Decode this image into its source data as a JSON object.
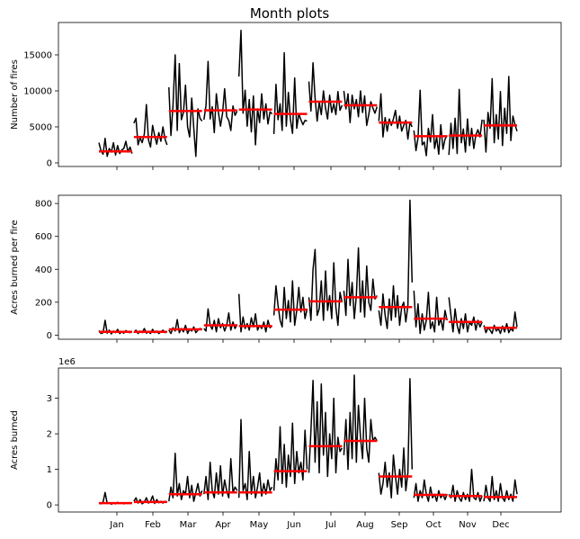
{
  "chart_data": {
    "type": "line",
    "title": "Month plots",
    "months": [
      "Jan",
      "Feb",
      "Mar",
      "Apr",
      "May",
      "Jun",
      "Jul",
      "Aug",
      "Sep",
      "Oct",
      "Nov",
      "Dec"
    ],
    "mean_line_color": "#ff0000",
    "series_line_color": "#000000",
    "panels": [
      {
        "ylabel": "Number of fires",
        "ylim": [
          -500,
          19500
        ],
        "yticks": [
          0,
          5000,
          10000,
          15000
        ],
        "ytick_labels": [
          "0",
          "5000",
          "10000",
          "15000"
        ],
        "offset_label": "",
        "month_means": [
          1600,
          3600,
          7200,
          7300,
          7400,
          6800,
          8500,
          8000,
          5600,
          3700,
          3800,
          5200
        ],
        "month_series": [
          [
            2800,
            1700,
            1200,
            3400,
            900,
            2000,
            1500,
            2800,
            1100,
            2400,
            1300,
            1800,
            2000,
            3000,
            1500,
            2200,
            1300
          ],
          [
            5500,
            6200,
            2500,
            3500,
            2800,
            4000,
            8100,
            3200,
            2200,
            5200,
            3800,
            2600,
            4200,
            3000,
            5000,
            3300,
            2500
          ],
          [
            10500,
            3800,
            8000,
            15000,
            4500,
            13800,
            6000,
            7000,
            10800,
            5000,
            3600,
            9000,
            4800,
            900,
            7500,
            6200,
            5800
          ],
          [
            6000,
            8000,
            14100,
            6100,
            7800,
            4200,
            9600,
            7000,
            5100,
            6900,
            10300,
            6400,
            5900,
            4500,
            7900,
            6600,
            7200
          ],
          [
            12000,
            18400,
            6900,
            10100,
            5100,
            8800,
            4300,
            9300,
            2500,
            7500,
            5600,
            9600,
            6100,
            8200,
            5400,
            7100,
            6800
          ],
          [
            4000,
            10900,
            6000,
            8200,
            4500,
            15300,
            5100,
            9800,
            6000,
            4100,
            11800,
            4800,
            6800,
            6000,
            5300,
            5900,
            5800
          ],
          [
            11300,
            7200,
            13900,
            9000,
            5800,
            8500,
            6700,
            10000,
            7600,
            6100,
            9400,
            7000,
            8200,
            6700,
            9900,
            7300,
            8000
          ],
          [
            10000,
            7500,
            9600,
            5600,
            9400,
            7500,
            8800,
            6400,
            10000,
            7000,
            9300,
            5200,
            6700,
            8500,
            7600,
            6900,
            7800
          ],
          [
            5800,
            9600,
            3600,
            6300,
            4400,
            6100,
            5200,
            6100,
            7300,
            4800,
            6500,
            4400,
            5200,
            5900,
            3300,
            5600,
            5000
          ],
          [
            4500,
            1700,
            3500,
            10100,
            2500,
            2900,
            1000,
            4800,
            2900,
            6700,
            2000,
            3600,
            1200,
            5300,
            1900,
            3300,
            3800
          ],
          [
            1100,
            5500,
            2000,
            6200,
            1300,
            10200,
            2800,
            4700,
            1500,
            6100,
            2400,
            4800,
            2000,
            3900,
            4600,
            3600,
            6000
          ],
          [
            6000,
            1500,
            7000,
            4800,
            11700,
            2800,
            6700,
            3300,
            9900,
            2400,
            7600,
            4100,
            12000,
            3100,
            6500,
            5300,
            4400
          ]
        ]
      },
      {
        "ylabel": "Acres burned per fire",
        "ylim": [
          -25,
          850
        ],
        "yticks": [
          0,
          200,
          400,
          600,
          800
        ],
        "ytick_labels": [
          "0",
          "200",
          "400",
          "600",
          "800"
        ],
        "offset_label": "",
        "month_means": [
          20,
          20,
          35,
          60,
          55,
          155,
          205,
          230,
          170,
          100,
          80,
          45
        ],
        "month_series": [
          [
            28,
            10,
            15,
            90,
            12,
            30,
            8,
            25,
            15,
            35,
            10,
            20,
            12,
            28,
            18,
            15,
            22
          ],
          [
            15,
            30,
            10,
            25,
            15,
            40,
            12,
            20,
            10,
            35,
            15,
            25,
            10,
            20,
            30,
            15,
            22
          ],
          [
            30,
            10,
            45,
            25,
            95,
            15,
            40,
            20,
            60,
            10,
            35,
            25,
            50,
            15,
            30,
            40,
            35
          ],
          [
            40,
            25,
            160,
            60,
            35,
            90,
            20,
            100,
            45,
            70,
            25,
            60,
            135,
            30,
            80,
            40,
            65
          ],
          [
            250,
            20,
            110,
            40,
            70,
            30,
            105,
            50,
            130,
            30,
            60,
            40,
            80,
            20,
            90,
            45,
            55
          ],
          [
            120,
            300,
            180,
            90,
            50,
            290,
            100,
            210,
            80,
            330,
            60,
            150,
            290,
            140,
            230,
            100,
            160
          ],
          [
            230,
            90,
            400,
            520,
            120,
            160,
            330,
            90,
            390,
            150,
            240,
            100,
            440,
            170,
            60,
            260,
            200
          ],
          [
            270,
            120,
            460,
            180,
            320,
            100,
            240,
            530,
            140,
            330,
            110,
            420,
            200,
            150,
            340,
            220,
            240
          ],
          [
            150,
            60,
            250,
            120,
            40,
            220,
            90,
            300,
            110,
            240,
            60,
            170,
            200,
            80,
            180,
            820,
            320
          ],
          [
            270,
            50,
            190,
            10,
            130,
            30,
            90,
            260,
            40,
            80,
            20,
            230,
            60,
            100,
            30,
            150,
            90
          ],
          [
            230,
            120,
            20,
            160,
            60,
            10,
            100,
            40,
            130,
            20,
            80,
            60,
            110,
            30,
            90,
            50,
            80
          ],
          [
            60,
            15,
            45,
            30,
            10,
            60,
            25,
            40,
            10,
            55,
            20,
            70,
            15,
            40,
            25,
            140,
            50
          ]
        ]
      },
      {
        "ylabel": "Acres burned",
        "ylim": [
          -0.2,
          3.85
        ],
        "yticks": [
          0,
          1,
          2,
          3
        ],
        "ytick_labels": [
          "0",
          "1",
          "2",
          "3"
        ],
        "offset_label": "1e6",
        "month_means": [
          0.05,
          0.08,
          0.3,
          0.35,
          0.35,
          0.95,
          1.65,
          1.8,
          0.8,
          0.28,
          0.25,
          0.22
        ],
        "month_series": [
          [
            0.05,
            0.03,
            0.08,
            0.35,
            0.04,
            0.06,
            0.02,
            0.05,
            0.03,
            0.07,
            0.04,
            0.05,
            0.03,
            0.06,
            0.04,
            0.05,
            0.05
          ],
          [
            0.1,
            0.2,
            0.05,
            0.15,
            0.03,
            0.08,
            0.2,
            0.05,
            0.1,
            0.25,
            0.04,
            0.15,
            0.06,
            0.1,
            0.05,
            0.1,
            0.07
          ],
          [
            0.1,
            0.5,
            0.2,
            1.45,
            0.25,
            0.6,
            0.15,
            0.4,
            0.3,
            0.8,
            0.2,
            0.55,
            0.1,
            0.35,
            0.6,
            0.25,
            0.4
          ],
          [
            0.3,
            0.8,
            0.15,
            1.2,
            0.4,
            0.2,
            0.9,
            0.3,
            1.1,
            0.25,
            0.7,
            0.4,
            0.2,
            1.3,
            0.35,
            0.5,
            0.4
          ],
          [
            0.2,
            2.4,
            0.4,
            0.6,
            0.15,
            1.5,
            0.3,
            0.8,
            0.2,
            0.5,
            0.9,
            0.25,
            0.6,
            0.3,
            0.7,
            0.4,
            0.5
          ],
          [
            0.4,
            1.3,
            0.7,
            2.2,
            0.6,
            1.7,
            0.5,
            1.4,
            0.8,
            2.3,
            0.6,
            1.5,
            0.9,
            1.2,
            0.7,
            2.1,
            1.0
          ],
          [
            0.9,
            2.1,
            3.5,
            1.2,
            2.9,
            0.9,
            3.4,
            1.4,
            2.6,
            0.8,
            2.0,
            1.3,
            3.0,
            0.9,
            1.9,
            1.5,
            1.6
          ],
          [
            1.4,
            2.4,
            1.0,
            2.6,
            1.3,
            3.65,
            1.2,
            2.8,
            1.9,
            1.3,
            3.0,
            1.6,
            1.2,
            2.4,
            1.8,
            1.9,
            1.8
          ],
          [
            0.9,
            0.3,
            0.6,
            1.2,
            0.5,
            0.9,
            0.2,
            1.4,
            0.8,
            0.3,
            1.0,
            0.5,
            1.6,
            0.4,
            0.9,
            3.55,
            1.0
          ],
          [
            0.2,
            0.6,
            0.1,
            0.4,
            0.2,
            0.7,
            0.3,
            0.1,
            0.5,
            0.2,
            0.3,
            0.1,
            0.4,
            0.2,
            0.3,
            0.15,
            0.3
          ],
          [
            0.3,
            0.2,
            0.55,
            0.1,
            0.4,
            0.2,
            0.1,
            0.35,
            0.15,
            0.3,
            0.1,
            1.0,
            0.2,
            0.15,
            0.35,
            0.1,
            0.25
          ],
          [
            0.1,
            0.55,
            0.2,
            0.1,
            0.8,
            0.15,
            0.4,
            0.1,
            0.6,
            0.2,
            0.1,
            0.4,
            0.15,
            0.3,
            0.1,
            0.7,
            0.3
          ]
        ]
      }
    ]
  }
}
